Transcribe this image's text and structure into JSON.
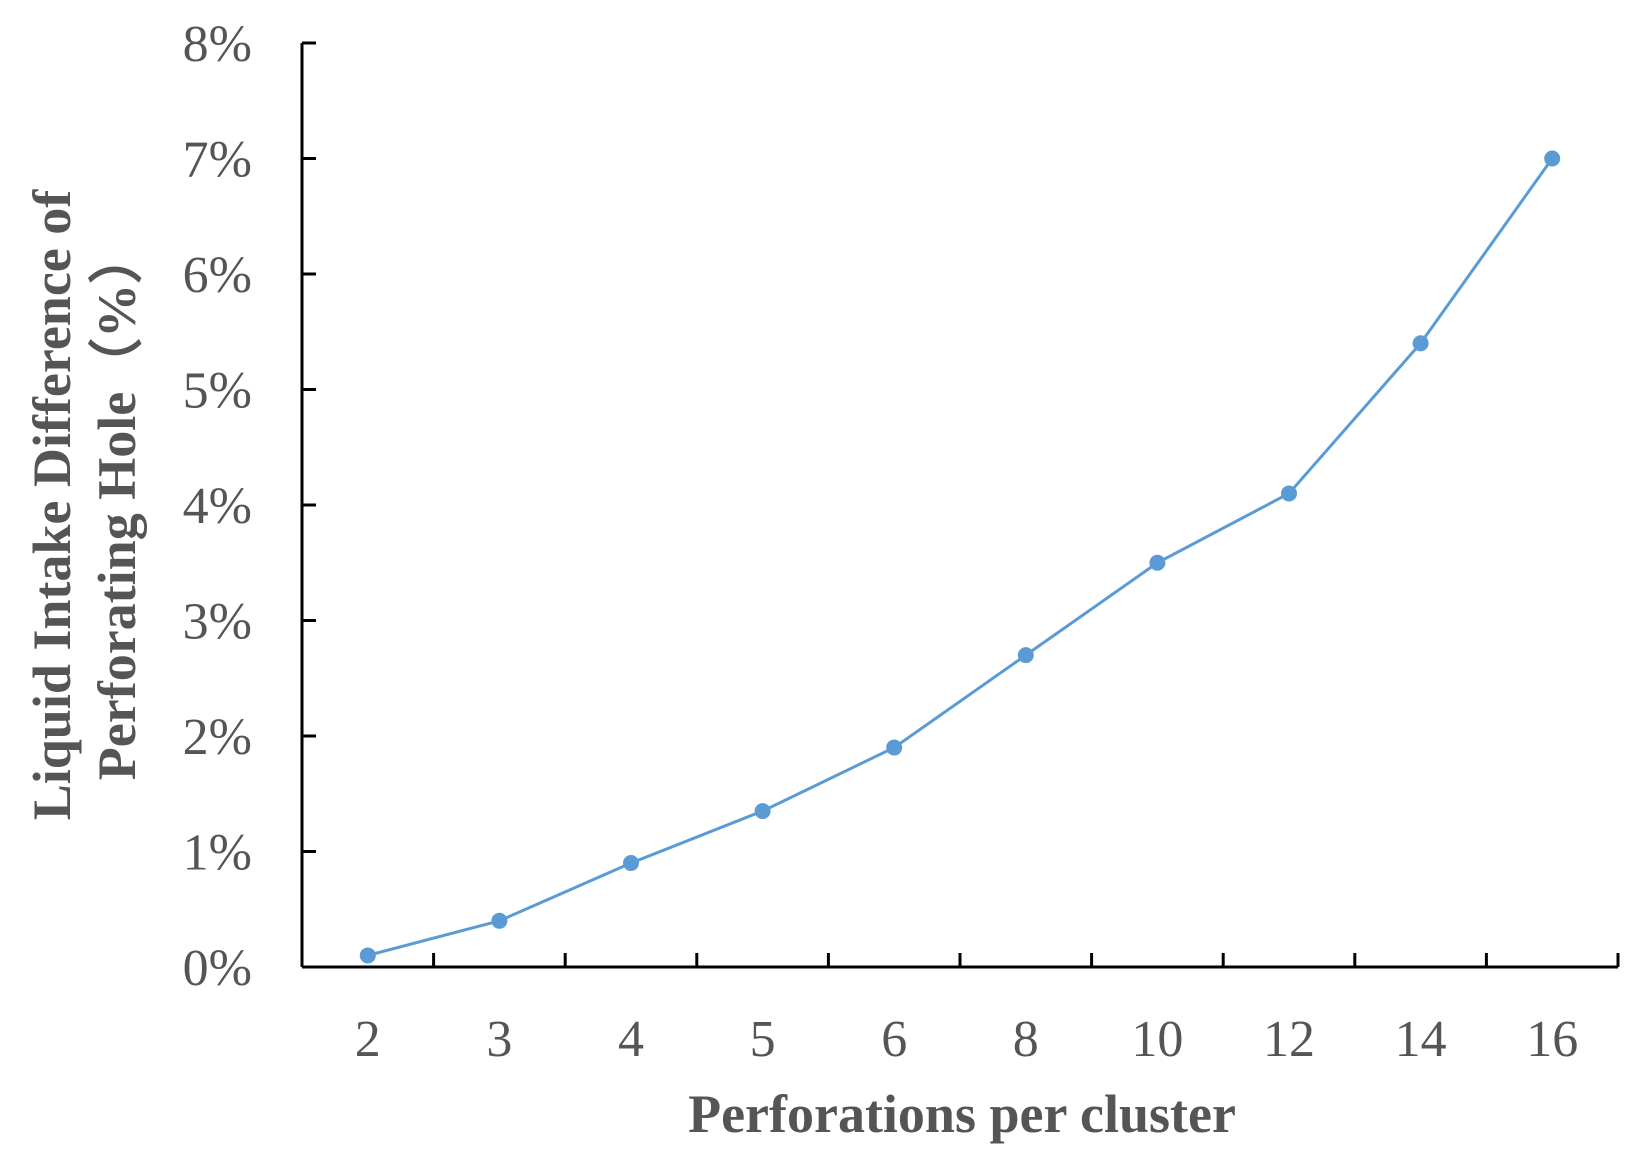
{
  "chart_data": {
    "type": "line",
    "title": "",
    "xlabel": "Perforations per cluster",
    "ylabel_lines": [
      "Liquid Intake Difference of",
      "Perforating Hole（%）"
    ],
    "categories": [
      "2",
      "3",
      "4",
      "5",
      "6",
      "8",
      "10",
      "12",
      "14",
      "16"
    ],
    "series": [
      {
        "values": [
          0.1,
          0.4,
          0.9,
          1.35,
          1.9,
          2.7,
          3.5,
          4.1,
          5.4,
          7.0
        ]
      }
    ],
    "yticks": [
      "0%",
      "1%",
      "2%",
      "3%",
      "4%",
      "5%",
      "6%",
      "7%",
      "8%"
    ],
    "ylim": [
      0,
      8
    ],
    "ytick_step": 1,
    "grid": false,
    "legend": "none",
    "colors": {
      "line": "#5b9bd5",
      "axis": "#000000",
      "text": "#555555"
    }
  }
}
